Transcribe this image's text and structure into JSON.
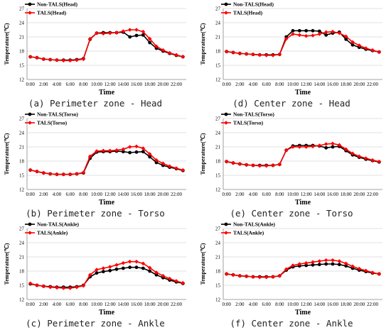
{
  "colors": {
    "non_tals": "#000000",
    "tals": "#ff0000",
    "grid": "#d9d9d9"
  },
  "chart_data": [
    {
      "type": "line",
      "caption": "(a) Perimeter zone - Head",
      "xlabel": "Time",
      "ylabel": "Temperature(℃)",
      "ylim": [
        12,
        27
      ],
      "yticks": [
        12,
        15,
        18,
        21,
        24,
        27
      ],
      "xticks": [
        "0:00",
        "2:00",
        "4:00",
        "6:00",
        "8:00",
        "10:00",
        "12:00",
        "14:00",
        "16:00",
        "18:00",
        "20:00",
        "22:00"
      ],
      "x": [
        0,
        1,
        2,
        3,
        4,
        5,
        6,
        7,
        8,
        9,
        10,
        11,
        12,
        13,
        14,
        15,
        16,
        17,
        18,
        19,
        20,
        21,
        22,
        23
      ],
      "legend": "top-left",
      "grid": "horizontal",
      "series": [
        {
          "name": "Non-TALS(Head)",
          "color": "#000000",
          "values": [
            16.8,
            16.6,
            16.3,
            16.2,
            16.1,
            16.1,
            16.1,
            16.2,
            16.4,
            20.5,
            21.8,
            21.9,
            21.9,
            21.9,
            22.0,
            21.0,
            21.3,
            21.4,
            19.8,
            18.6,
            18.0,
            17.5,
            17.1,
            16.8
          ]
        },
        {
          "name": "TALS(Head)",
          "color": "#ff0000",
          "values": [
            16.8,
            16.6,
            16.3,
            16.2,
            16.1,
            16.0,
            16.0,
            16.1,
            16.3,
            20.6,
            21.8,
            21.7,
            21.8,
            21.9,
            22.2,
            22.5,
            22.5,
            22.1,
            20.6,
            19.0,
            18.2,
            17.6,
            17.2,
            16.8
          ]
        }
      ]
    },
    {
      "type": "line",
      "caption": "(b) Perimeter zone - Torso",
      "xlabel": "Time",
      "ylabel": "Temperature(℃)",
      "ylim": [
        12,
        27
      ],
      "yticks": [
        12,
        15,
        18,
        21,
        24,
        27
      ],
      "xticks": [
        "0:00",
        "2:00",
        "4:00",
        "6:00",
        "8:00",
        "10:00",
        "12:00",
        "14:00",
        "16:00",
        "18:00",
        "20:00",
        "22:00"
      ],
      "x": [
        0,
        1,
        2,
        3,
        4,
        5,
        6,
        7,
        8,
        9,
        10,
        11,
        12,
        13,
        14,
        15,
        16,
        17,
        18,
        19,
        20,
        21,
        22,
        23
      ],
      "legend": "top-left",
      "grid": "horizontal",
      "series": [
        {
          "name": "Non-TALS(Torso)",
          "color": "#000000",
          "values": [
            16.1,
            15.8,
            15.5,
            15.3,
            15.2,
            15.2,
            15.2,
            15.3,
            15.5,
            18.6,
            19.9,
            20.0,
            20.0,
            20.1,
            20.0,
            19.8,
            19.9,
            20.0,
            18.9,
            17.7,
            17.1,
            16.7,
            16.4,
            16.0
          ]
        },
        {
          "name": "TALS(Torso)",
          "color": "#ff0000",
          "values": [
            16.1,
            15.8,
            15.5,
            15.3,
            15.2,
            15.2,
            15.2,
            15.3,
            15.6,
            19.0,
            20.1,
            20.2,
            20.2,
            20.3,
            20.5,
            21.0,
            21.1,
            20.7,
            19.5,
            18.2,
            17.5,
            16.9,
            16.5,
            16.1
          ]
        }
      ]
    },
    {
      "type": "line",
      "caption": "(c) Perimeter zone - Ankle",
      "xlabel": "Time",
      "ylabel": "Temperature(℃)",
      "ylim": [
        12,
        27
      ],
      "yticks": [
        12,
        15,
        18,
        21,
        24,
        27
      ],
      "xticks": [
        "0:00",
        "2:00",
        "4:00",
        "6:00",
        "8:00",
        "10:00",
        "12:00",
        "14:00",
        "16:00",
        "18:00",
        "20:00",
        "22:00"
      ],
      "x": [
        0,
        1,
        2,
        3,
        4,
        5,
        6,
        7,
        8,
        9,
        10,
        11,
        12,
        13,
        14,
        15,
        16,
        17,
        18,
        19,
        20,
        21,
        22,
        23
      ],
      "legend": "top-left",
      "grid": "horizontal",
      "series": [
        {
          "name": "Non-TALS(Ankle)",
          "color": "#000000",
          "values": [
            15.3,
            15.0,
            14.8,
            14.7,
            14.6,
            14.6,
            14.6,
            14.7,
            15.0,
            16.8,
            17.6,
            17.9,
            18.1,
            18.4,
            18.6,
            18.8,
            18.8,
            18.6,
            18.0,
            17.2,
            16.6,
            16.1,
            15.7,
            15.4
          ]
        },
        {
          "name": "TALS(Ankle)",
          "color": "#ff0000",
          "values": [
            15.4,
            15.0,
            14.8,
            14.6,
            14.5,
            14.4,
            14.4,
            14.6,
            14.9,
            17.2,
            18.3,
            18.6,
            18.9,
            19.3,
            19.7,
            20.0,
            20.0,
            19.6,
            18.7,
            17.7,
            17.0,
            16.4,
            15.9,
            15.5
          ]
        }
      ]
    },
    {
      "type": "line",
      "caption": "(d) Center zone - Head",
      "xlabel": "Time",
      "ylabel": "Temperature(℃)",
      "ylim": [
        12,
        27
      ],
      "yticks": [
        12,
        15,
        18,
        21,
        24,
        27
      ],
      "xticks": [
        "0:00",
        "2:00",
        "4:00",
        "6:00",
        "8:00",
        "10:00",
        "12:00",
        "14:00",
        "16:00",
        "18:00",
        "20:00",
        "22:00"
      ],
      "x": [
        0,
        1,
        2,
        3,
        4,
        5,
        6,
        7,
        8,
        9,
        10,
        11,
        12,
        13,
        14,
        15,
        16,
        17,
        18,
        19,
        20,
        21,
        22,
        23
      ],
      "legend": "top-left",
      "grid": "horizontal",
      "series": [
        {
          "name": "Non-TALS(Head)",
          "color": "#000000",
          "values": [
            17.9,
            17.7,
            17.5,
            17.4,
            17.3,
            17.2,
            17.2,
            17.2,
            17.3,
            21.0,
            22.3,
            22.3,
            22.3,
            22.3,
            22.2,
            21.4,
            21.8,
            22.0,
            20.5,
            19.3,
            18.8,
            18.4,
            18.1,
            17.8
          ]
        },
        {
          "name": "TALS(Head)",
          "color": "#ff0000",
          "values": [
            17.9,
            17.7,
            17.5,
            17.4,
            17.3,
            17.2,
            17.1,
            17.1,
            17.3,
            20.6,
            21.6,
            21.4,
            21.2,
            21.3,
            21.6,
            22.0,
            22.1,
            21.8,
            21.1,
            19.9,
            19.2,
            18.6,
            18.2,
            17.8
          ]
        }
      ]
    },
    {
      "type": "line",
      "caption": "(e) Center zone - Torso",
      "xlabel": "Time",
      "ylabel": "Temperature(℃)",
      "ylim": [
        12,
        27
      ],
      "yticks": [
        12,
        15,
        18,
        21,
        24,
        27
      ],
      "xticks": [
        "0:00",
        "2:00",
        "4:00",
        "6:00",
        "8:00",
        "10:00",
        "12:00",
        "14:00",
        "16:00",
        "18:00",
        "20:00",
        "22:00"
      ],
      "x": [
        0,
        1,
        2,
        3,
        4,
        5,
        6,
        7,
        8,
        9,
        10,
        11,
        12,
        13,
        14,
        15,
        16,
        17,
        18,
        19,
        20,
        21,
        22,
        23
      ],
      "legend": "top-left",
      "grid": "horizontal",
      "series": [
        {
          "name": "Non-TALS(Torso)",
          "color": "#000000",
          "values": [
            17.9,
            17.6,
            17.4,
            17.2,
            17.1,
            17.1,
            17.1,
            17.1,
            17.3,
            20.3,
            21.2,
            21.3,
            21.3,
            21.3,
            21.2,
            20.8,
            21.0,
            21.1,
            20.2,
            19.3,
            18.8,
            18.4,
            18.1,
            17.8
          ]
        },
        {
          "name": "TALS(Torso)",
          "color": "#ff0000",
          "values": [
            17.9,
            17.6,
            17.4,
            17.2,
            17.1,
            17.0,
            17.0,
            17.1,
            17.3,
            20.3,
            21.0,
            21.0,
            21.0,
            21.1,
            21.3,
            21.6,
            21.7,
            21.4,
            20.5,
            19.6,
            19.0,
            18.6,
            18.2,
            17.9
          ]
        }
      ]
    },
    {
      "type": "line",
      "caption": "(f) Center zone - Ankle",
      "xlabel": "Time",
      "ylabel": "Temperature(℃)",
      "ylim": [
        12,
        27
      ],
      "yticks": [
        12,
        15,
        18,
        21,
        24,
        27
      ],
      "xticks": [
        "0:00",
        "2:00",
        "4:00",
        "6:00",
        "8:00",
        "10:00",
        "12:00",
        "14:00",
        "16:00",
        "18:00",
        "20:00",
        "22:00"
      ],
      "x": [
        0,
        1,
        2,
        3,
        4,
        5,
        6,
        7,
        8,
        9,
        10,
        11,
        12,
        13,
        14,
        15,
        16,
        17,
        18,
        19,
        20,
        21,
        22,
        23
      ],
      "legend": "top-left",
      "grid": "horizontal",
      "series": [
        {
          "name": "Non-TALS(Ankle)",
          "color": "#000000",
          "values": [
            17.4,
            17.2,
            17.0,
            16.9,
            16.8,
            16.8,
            16.8,
            16.8,
            17.0,
            18.2,
            18.9,
            19.1,
            19.2,
            19.3,
            19.4,
            19.5,
            19.5,
            19.4,
            19.1,
            18.6,
            18.2,
            17.9,
            17.6,
            17.4
          ]
        },
        {
          "name": "TALS(Ankle)",
          "color": "#ff0000",
          "values": [
            17.4,
            17.2,
            17.0,
            16.9,
            16.8,
            16.7,
            16.7,
            16.8,
            17.0,
            18.4,
            19.2,
            19.5,
            19.7,
            19.9,
            20.1,
            20.3,
            20.3,
            20.1,
            19.6,
            19.0,
            18.5,
            18.1,
            17.7,
            17.4
          ]
        }
      ]
    }
  ]
}
